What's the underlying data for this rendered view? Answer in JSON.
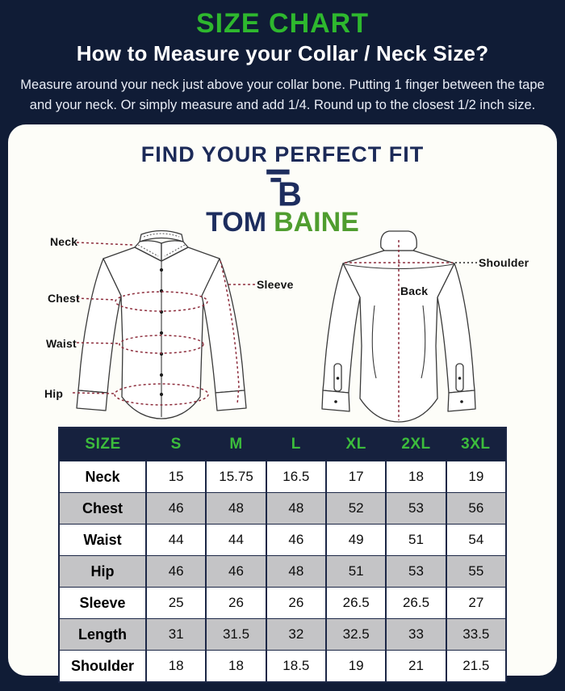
{
  "top": {
    "title": "SIZE CHART",
    "subtitle": "How to Measure your Collar / Neck Size?",
    "description_line1": "Measure around your neck just above your collar bone. Putting 1 finger between the tape",
    "description_line2": "and your neck. Or simply measure and add 1/4. Round up to the closest 1/2 inch size."
  },
  "panel": {
    "heading": "FIND YOUR PERFECT FIT",
    "brand": {
      "word_primary": "TOM",
      "word_secondary": "BAINE"
    },
    "front_shirt_labels": {
      "neck": "Neck",
      "chest": "Chest",
      "waist": "Waist",
      "hip": "Hip",
      "sleeve": "Sleeve"
    },
    "back_shirt_labels": {
      "shoulder": "Shoulder",
      "back": "Back"
    }
  },
  "chart_data": {
    "type": "table",
    "columns": [
      "SIZE",
      "S",
      "M",
      "L",
      "XL",
      "2XL",
      "3XL"
    ],
    "rows": [
      {
        "label": "Neck",
        "values": [
          "15",
          "15.75",
          "16.5",
          "17",
          "18",
          "19"
        ]
      },
      {
        "label": "Chest",
        "values": [
          "46",
          "48",
          "48",
          "52",
          "53",
          "56"
        ]
      },
      {
        "label": "Waist",
        "values": [
          "44",
          "44",
          "46",
          "49",
          "51",
          "54"
        ]
      },
      {
        "label": "Hip",
        "values": [
          "46",
          "46",
          "48",
          "51",
          "53",
          "55"
        ]
      },
      {
        "label": "Sleeve",
        "values": [
          "25",
          "26",
          "26",
          "26.5",
          "26.5",
          "27"
        ]
      },
      {
        "label": "Length",
        "values": [
          "31",
          "31.5",
          "32",
          "32.5",
          "33",
          "33.5"
        ]
      },
      {
        "label": "Shoulder",
        "values": [
          "18",
          "18",
          "18.5",
          "19",
          "21",
          "21.5"
        ]
      }
    ]
  },
  "colors": {
    "background_navy": "#101c36",
    "accent_green": "#2eb82e",
    "logo_navy": "#1d2d5e",
    "logo_green": "#4f9d2f",
    "table_header_bg": "#16213e",
    "table_header_text": "#3cbc3c",
    "table_alt_row": "#c4c4c6",
    "measure_line_red": "#8e2f3e"
  }
}
